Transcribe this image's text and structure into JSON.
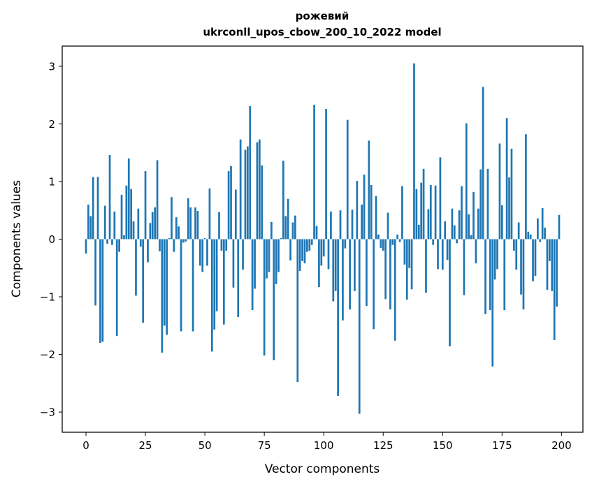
{
  "chart_data": {
    "type": "bar",
    "title_line1": "рожевий",
    "title_line2": "ukrconll_upos_cbow_200_10_2022 model",
    "xlabel": "Vector components",
    "ylabel": "Components values",
    "xlim": [
      -10,
      209
    ],
    "ylim": [
      -3.35,
      3.35
    ],
    "xticks": [
      0,
      25,
      50,
      75,
      100,
      125,
      150,
      175,
      200
    ],
    "yticks": [
      -3,
      -2,
      -1,
      0,
      1,
      2,
      3
    ],
    "xtick_labels": [
      "0",
      "25",
      "50",
      "75",
      "100",
      "125",
      "150",
      "175",
      "200"
    ],
    "ytick_labels": [
      "−3",
      "−2",
      "−1",
      "0",
      "1",
      "2",
      "3"
    ],
    "grid": false,
    "bar_color": "#1f77b4",
    "values": [
      -0.25,
      0.6,
      0.4,
      1.08,
      -1.15,
      1.08,
      -1.8,
      -1.78,
      0.58,
      -0.08,
      1.46,
      -0.1,
      0.48,
      -1.68,
      -0.22,
      0.77,
      0.07,
      0.93,
      1.4,
      0.87,
      0.31,
      -0.98,
      0.53,
      -0.13,
      -1.45,
      1.18,
      -0.4,
      0.28,
      0.47,
      0.55,
      1.37,
      -0.21,
      -1.97,
      -1.5,
      -1.66,
      0.02,
      0.73,
      -0.22,
      0.38,
      0.22,
      -1.6,
      -0.06,
      -0.04,
      0.71,
      0.55,
      -1.6,
      0.55,
      0.49,
      -0.46,
      -0.57,
      0.02,
      -0.46,
      0.88,
      -1.95,
      -1.57,
      -1.25,
      0.47,
      -0.2,
      -1.48,
      -0.2,
      1.18,
      1.27,
      -0.84,
      0.86,
      -1.35,
      1.73,
      -0.53,
      1.55,
      1.61,
      2.31,
      -1.23,
      -0.86,
      1.68,
      1.73,
      1.28,
      -2.02,
      -0.68,
      -0.57,
      0.3,
      -2.1,
      -0.78,
      -0.57,
      0.02,
      1.36,
      0.4,
      0.7,
      -0.37,
      0.29,
      0.41,
      -2.48,
      -0.55,
      -0.38,
      -0.42,
      -0.22,
      -0.2,
      -0.1,
      2.33,
      0.23,
      -0.83,
      -0.46,
      -0.3,
      2.26,
      -0.52,
      0.48,
      -1.08,
      -0.9,
      -2.72,
      0.5,
      -1.41,
      -0.16,
      2.07,
      -1.22,
      0.51,
      -0.9,
      1.01,
      -3.03,
      0.6,
      1.12,
      -1.16,
      1.71,
      0.94,
      -1.56,
      0.75,
      0.08,
      -0.15,
      -0.2,
      -1.04,
      0.46,
      -1.22,
      -0.1,
      -1.76,
      0.08,
      -0.05,
      0.92,
      -0.44,
      -1.05,
      -0.5,
      -0.87,
      3.05,
      0.87,
      0.25,
      0.98,
      1.22,
      -0.93,
      0.52,
      0.94,
      -0.1,
      0.93,
      -0.52,
      1.42,
      -0.53,
      0.31,
      -0.36,
      -1.86,
      0.53,
      0.24,
      -0.07,
      0.5,
      0.92,
      -0.97,
      2.01,
      0.43,
      0.07,
      0.82,
      -0.42,
      0.53,
      1.21,
      2.64,
      -1.3,
      1.22,
      -1.23,
      -2.21,
      -0.7,
      -0.52,
      1.66,
      0.59,
      -1.23,
      2.1,
      1.07,
      1.57,
      -0.2,
      -0.53,
      0.29,
      -0.96,
      -1.22,
      1.82,
      0.13,
      0.08,
      -0.73,
      -0.64,
      0.36,
      -0.05,
      0.54,
      0.2,
      -0.88,
      -0.38,
      -0.9,
      -1.75,
      -1.17,
      0.42
    ]
  }
}
